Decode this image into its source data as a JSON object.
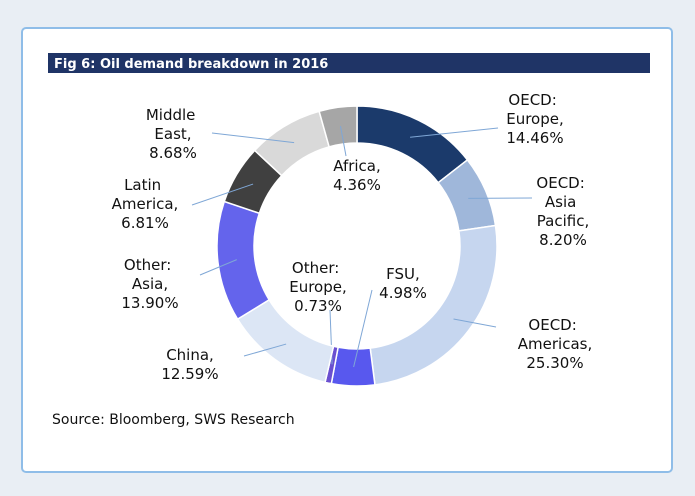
{
  "chart_data": {
    "type": "donut",
    "title": "Fig 6: Oil demand breakdown in 2016",
    "source": "Source: Bloomberg, SWS Research",
    "categories": [
      "OECD: Europe,",
      "OECD: Asia Pacific,",
      "OECD: Americas,",
      "FSU,",
      "Other: Europe,",
      "China,",
      "Other: Asia,",
      "Latin America,",
      "Middle East,",
      "Africa,"
    ],
    "values": [
      14.46,
      8.2,
      25.3,
      4.98,
      0.73,
      12.59,
      13.9,
      6.81,
      8.68,
      4.36
    ],
    "value_labels": [
      "14.46%",
      "8.20%",
      "25.30%",
      "4.98%",
      "0.73%",
      "12.59%",
      "13.90%",
      "6.81%",
      "8.68%",
      "4.36%"
    ],
    "colors": [
      "#1b3a6b",
      "#9fb7da",
      "#c6d6ef",
      "#5858ee",
      "#6a4fd0",
      "#dce6f5",
      "#6464ec",
      "#404040",
      "#d9d9d9",
      "#a6a6a6"
    ]
  }
}
